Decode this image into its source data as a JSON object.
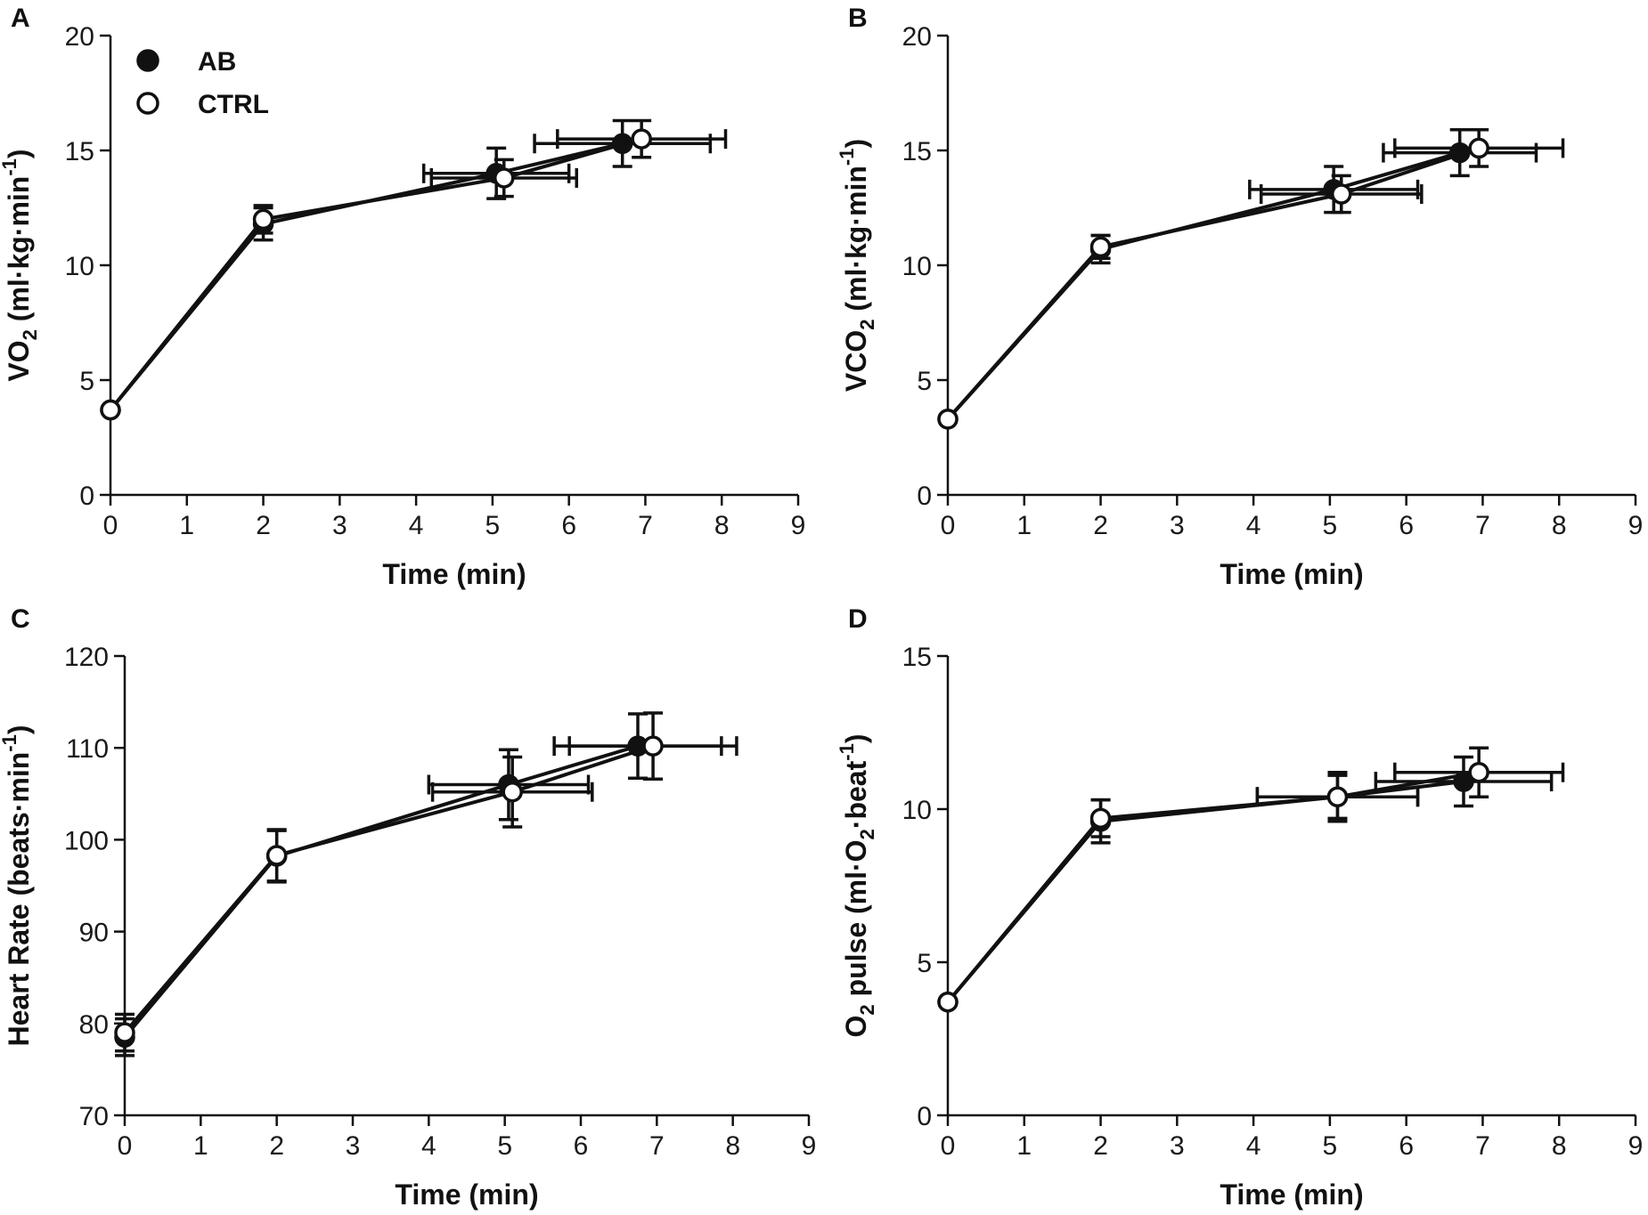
{
  "legend": [
    {
      "label": "AB",
      "marker": "filled"
    },
    {
      "label": "CTRL",
      "marker": "open"
    }
  ],
  "colors": {
    "ink": "#111111",
    "open_fill": "#ffffff"
  },
  "chart_data": [
    {
      "panel": "A",
      "type": "line",
      "xlabel": "Time (min)",
      "ylabel": {
        "main": "VO",
        "sub": "2",
        "unit": " (ml·kg·min",
        "sup": "-1",
        "close": ")"
      },
      "xlim": [
        0,
        9
      ],
      "ylim": [
        0,
        20
      ],
      "xticks": [
        "0",
        "1",
        "2",
        "3",
        "4",
        "5",
        "6",
        "7",
        "8",
        "9"
      ],
      "yticks": [
        "0",
        "5",
        "10",
        "15",
        "20"
      ],
      "grid": false,
      "legend_position": "top-left",
      "series": [
        {
          "name": "AB",
          "marker": "filled",
          "points": [
            {
              "x": 0,
              "y": 3.7,
              "xerr": 0,
              "yerr": 0
            },
            {
              "x": 2,
              "y": 11.8,
              "xerr": 0,
              "yerr": 0.7
            },
            {
              "x": 5.05,
              "y": 14.0,
              "xerr": 0.95,
              "yerr": 1.1
            },
            {
              "x": 6.7,
              "y": 15.3,
              "xerr": 1.15,
              "yerr": 1.0
            }
          ]
        },
        {
          "name": "CTRL",
          "marker": "open",
          "points": [
            {
              "x": 0,
              "y": 3.7,
              "xerr": 0,
              "yerr": 0
            },
            {
              "x": 2,
              "y": 12.0,
              "xerr": 0,
              "yerr": 0.6
            },
            {
              "x": 5.15,
              "y": 13.8,
              "xerr": 0.95,
              "yerr": 0.8
            },
            {
              "x": 6.95,
              "y": 15.5,
              "xerr": 1.1,
              "yerr": 0.8
            }
          ]
        }
      ]
    },
    {
      "panel": "B",
      "type": "line",
      "xlabel": "Time (min)",
      "ylabel": {
        "main": "VCO",
        "sub": "2",
        "unit": " (ml·kg·min",
        "sup": "-1",
        "close": ")"
      },
      "xlim": [
        0,
        9
      ],
      "ylim": [
        0,
        20
      ],
      "xticks": [
        "0",
        "1",
        "2",
        "3",
        "4",
        "5",
        "6",
        "7",
        "8",
        "9"
      ],
      "yticks": [
        "0",
        "5",
        "10",
        "15",
        "20"
      ],
      "grid": false,
      "series": [
        {
          "name": "AB",
          "marker": "filled",
          "points": [
            {
              "x": 0,
              "y": 3.3,
              "xerr": 0,
              "yerr": 0
            },
            {
              "x": 2,
              "y": 10.7,
              "xerr": 0,
              "yerr": 0.6
            },
            {
              "x": 5.05,
              "y": 13.3,
              "xerr": 1.1,
              "yerr": 1.0
            },
            {
              "x": 6.7,
              "y": 14.9,
              "xerr": 1.0,
              "yerr": 1.0
            }
          ]
        },
        {
          "name": "CTRL",
          "marker": "open",
          "points": [
            {
              "x": 0,
              "y": 3.3,
              "xerr": 0,
              "yerr": 0
            },
            {
              "x": 2,
              "y": 10.8,
              "xerr": 0,
              "yerr": 0.5
            },
            {
              "x": 5.15,
              "y": 13.1,
              "xerr": 1.05,
              "yerr": 0.8
            },
            {
              "x": 6.95,
              "y": 15.1,
              "xerr": 1.1,
              "yerr": 0.8
            }
          ]
        }
      ]
    },
    {
      "panel": "C",
      "type": "line",
      "xlabel": "Time (min)",
      "ylabel": {
        "main": "Heart Rate",
        "sub": "",
        "unit": " (beats·min",
        "sup": "-1",
        "close": ")"
      },
      "xlim": [
        0,
        9
      ],
      "ylim": [
        70,
        120
      ],
      "xticks": [
        "0",
        "1",
        "2",
        "3",
        "4",
        "5",
        "6",
        "7",
        "8",
        "9"
      ],
      "yticks": [
        "70",
        "80",
        "90",
        "100",
        "110",
        "120"
      ],
      "grid": false,
      "series": [
        {
          "name": "AB",
          "marker": "filled",
          "points": [
            {
              "x": 0,
              "y": 78.5,
              "xerr": 0,
              "yerr": 2.0
            },
            {
              "x": 2,
              "y": 98.2,
              "xerr": 0,
              "yerr": 2.8
            },
            {
              "x": 5.05,
              "y": 106.0,
              "xerr": 1.05,
              "yerr": 3.8
            },
            {
              "x": 6.75,
              "y": 110.2,
              "xerr": 1.1,
              "yerr": 3.5
            }
          ]
        },
        {
          "name": "CTRL",
          "marker": "open",
          "points": [
            {
              "x": 0,
              "y": 79.0,
              "xerr": 0,
              "yerr": 2.0
            },
            {
              "x": 2,
              "y": 98.3,
              "xerr": 0,
              "yerr": 2.8
            },
            {
              "x": 5.1,
              "y": 105.2,
              "xerr": 1.05,
              "yerr": 3.8
            },
            {
              "x": 6.95,
              "y": 110.2,
              "xerr": 1.1,
              "yerr": 3.6
            }
          ]
        }
      ]
    },
    {
      "panel": "D",
      "type": "line",
      "xlabel": "Time (min)",
      "ylabel": {
        "main": "O",
        "sub": "2",
        "unit": " pulse (ml·O",
        "sub2": "2",
        "unit2": "·beat",
        "sup": "-1",
        "close": ")"
      },
      "xlim": [
        0,
        9
      ],
      "ylim": [
        0,
        15
      ],
      "xticks": [
        "0",
        "1",
        "2",
        "3",
        "4",
        "5",
        "6",
        "7",
        "8",
        "9"
      ],
      "yticks": [
        "0",
        "5",
        "10",
        "15"
      ],
      "grid": false,
      "series": [
        {
          "name": "AB",
          "marker": "filled",
          "points": [
            {
              "x": 0,
              "y": 3.7,
              "xerr": 0,
              "yerr": 0
            },
            {
              "x": 2,
              "y": 9.6,
              "xerr": 0,
              "yerr": 0.7
            },
            {
              "x": 5.1,
              "y": 10.4,
              "xerr": 1.05,
              "yerr": 0.7
            },
            {
              "x": 6.75,
              "y": 10.9,
              "xerr": 1.15,
              "yerr": 0.8
            }
          ]
        },
        {
          "name": "CTRL",
          "marker": "open",
          "points": [
            {
              "x": 0,
              "y": 3.7,
              "xerr": 0,
              "yerr": 0
            },
            {
              "x": 2,
              "y": 9.7,
              "xerr": 0,
              "yerr": 0.6
            },
            {
              "x": 5.1,
              "y": 10.4,
              "xerr": 1.05,
              "yerr": 0.8
            },
            {
              "x": 6.95,
              "y": 11.2,
              "xerr": 1.1,
              "yerr": 0.8
            }
          ]
        }
      ]
    }
  ]
}
